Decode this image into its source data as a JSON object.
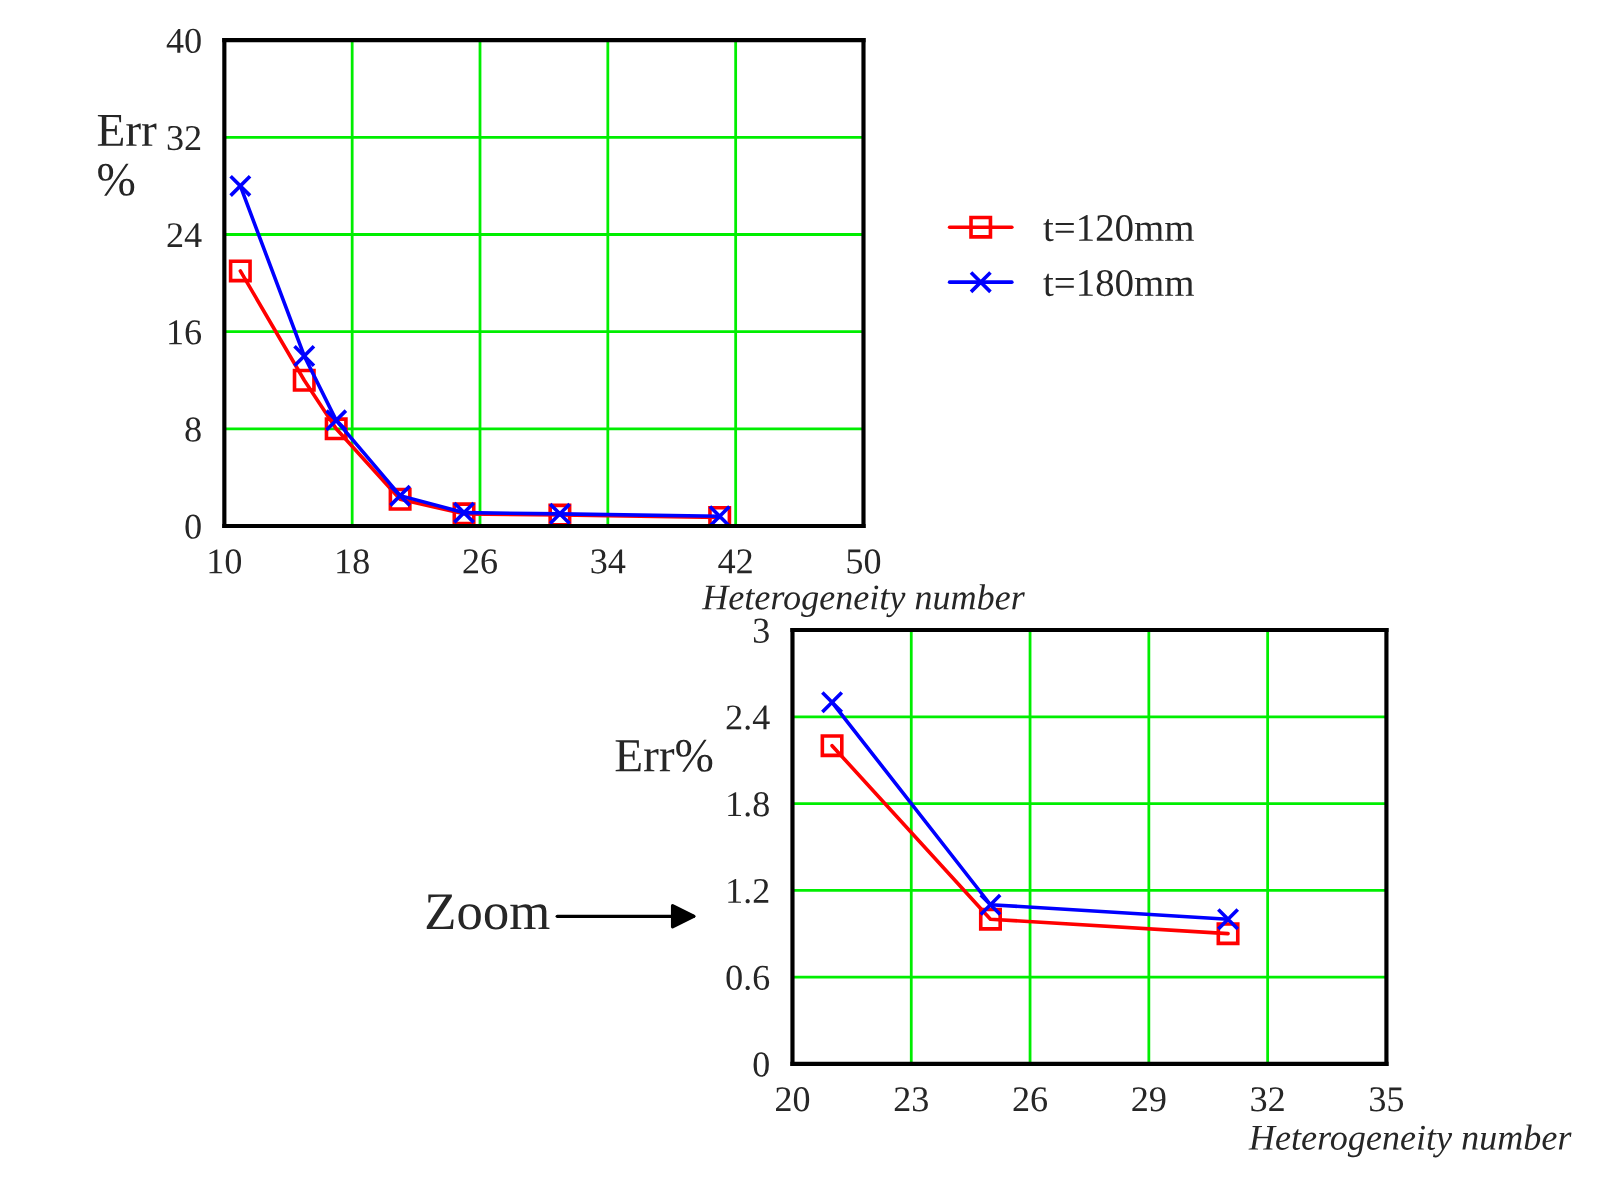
{
  "chart_data": [
    {
      "type": "line",
      "xlabel": "Heterogeneity number",
      "ylabel": "Err\n%",
      "x": [
        11,
        15,
        17,
        21,
        25,
        31,
        41
      ],
      "series": [
        {
          "name": "t=120mm",
          "color": "#ff0000",
          "marker": "square",
          "values": [
            21,
            12,
            8,
            2.2,
            1.0,
            0.9,
            0.7
          ]
        },
        {
          "name": "t=180mm",
          "color": "#0000ff",
          "marker": "cross",
          "values": [
            28,
            14,
            8.7,
            2.5,
            1.1,
            1.0,
            0.8
          ]
        }
      ],
      "xlim": [
        10,
        50
      ],
      "xticks": [
        10,
        18,
        26,
        34,
        42,
        50
      ],
      "ylim": [
        0,
        40
      ],
      "yticks": [
        0,
        8,
        16,
        24,
        32,
        40
      ],
      "grid": true,
      "legend": "right",
      "line_style": "solid"
    },
    {
      "type": "line",
      "xlabel": "Heterogeneity number",
      "ylabel": "Err%",
      "annotations": [
        "Zoom"
      ],
      "x": [
        21,
        25,
        31
      ],
      "series": [
        {
          "color": "#ff0000",
          "marker": "square",
          "values": [
            2.2,
            1.0,
            0.9
          ]
        },
        {
          "color": "#0000ff",
          "marker": "cross",
          "values": [
            2.5,
            1.1,
            1.0
          ]
        }
      ],
      "xlim": [
        20,
        35
      ],
      "xticks": [
        20,
        23,
        26,
        29,
        32,
        35
      ],
      "ylim": [
        0,
        3
      ],
      "yticks": [
        0,
        0.6,
        1.2,
        1.8,
        2.4,
        3
      ],
      "grid": true,
      "line_style": "solid"
    }
  ]
}
